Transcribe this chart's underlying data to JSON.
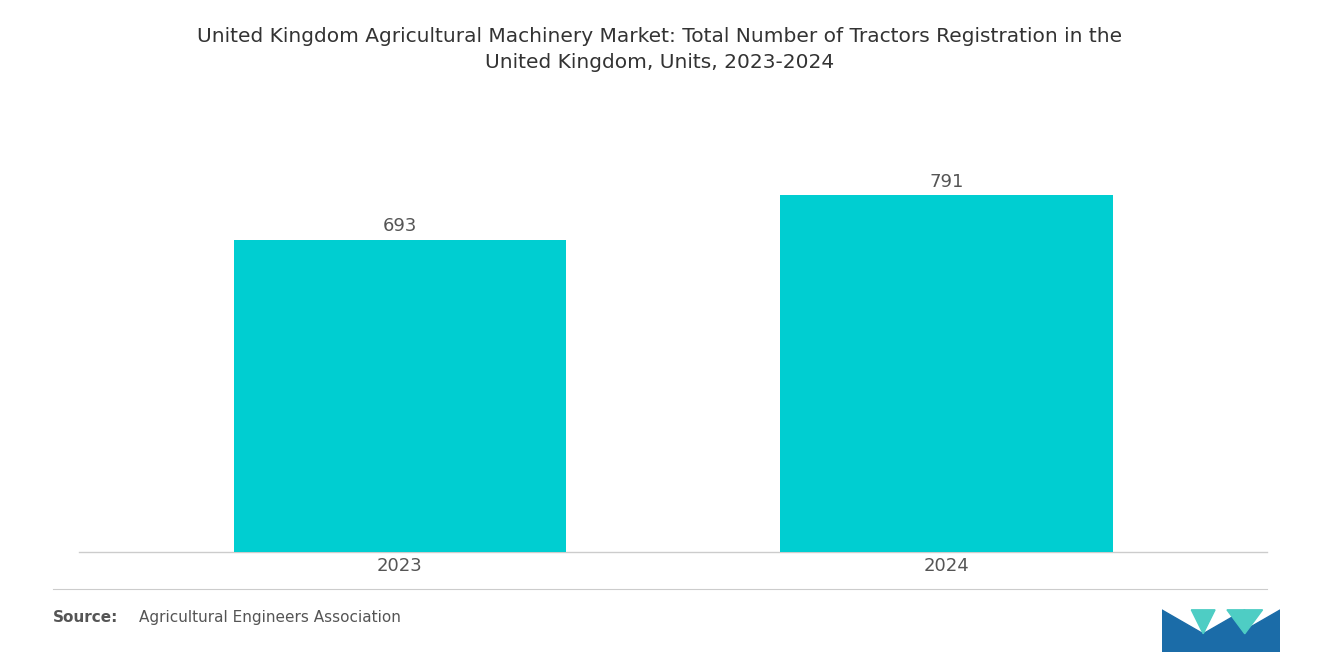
{
  "title": "United Kingdom Agricultural Machinery Market: Total Number of Tractors Registration in the\nUnited Kingdom, Units, 2023-2024",
  "categories": [
    "2023",
    "2024"
  ],
  "values": [
    693,
    791
  ],
  "bar_color": "#00CED1",
  "bar_width": 0.28,
  "value_labels": [
    "693",
    "791"
  ],
  "source_bold": "Source:",
  "source_text": "  Agricultural Engineers Association",
  "background_color": "#ffffff",
  "title_fontsize": 14.5,
  "label_fontsize": 13,
  "value_fontsize": 13,
  "source_fontsize": 11,
  "ylim": [
    0,
    900
  ],
  "xlim": [
    0,
    1
  ]
}
